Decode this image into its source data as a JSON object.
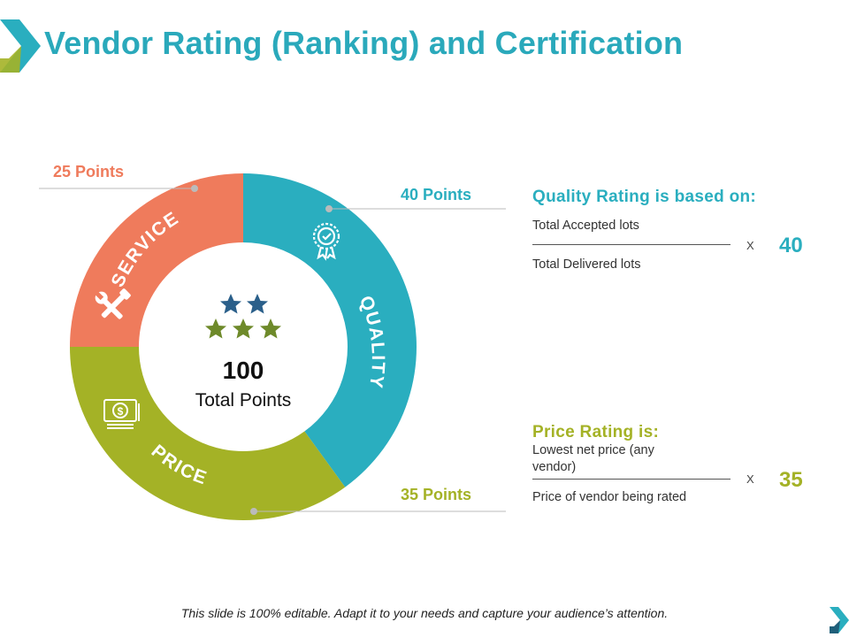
{
  "title": "Vendor Rating (Ranking) and Certification",
  "donut": {
    "center_value": "100",
    "center_label": "Total Points",
    "segments": [
      {
        "key": "quality",
        "label": "QUALITY",
        "value": 40,
        "color": "#2aaebf",
        "points_label": "40 Points",
        "icon": "award-badge-icon"
      },
      {
        "key": "price",
        "label": "PRICE",
        "value": 35,
        "color": "#a4b226",
        "points_label": "35 Points",
        "icon": "money-stack-icon"
      },
      {
        "key": "service",
        "label": "SERVICE",
        "value": 25,
        "color": "#ef7b5c",
        "points_label": "25 Points",
        "icon": "tools-icon"
      }
    ]
  },
  "quality_rating": {
    "heading": "Quality Rating is based on:",
    "numerator": "Total Accepted lots",
    "denominator": "Total Delivered lots",
    "times": "X",
    "value": "40",
    "color": "#2aaebf"
  },
  "price_rating": {
    "heading": "Price Rating is:",
    "numerator": "Lowest net price (any vendor)",
    "denominator": "Price of vendor being rated",
    "times": "X",
    "value": "35",
    "color": "#a4b226"
  },
  "footer": "This slide is 100% editable. Adapt it to your needs and capture your audience’s attention."
}
